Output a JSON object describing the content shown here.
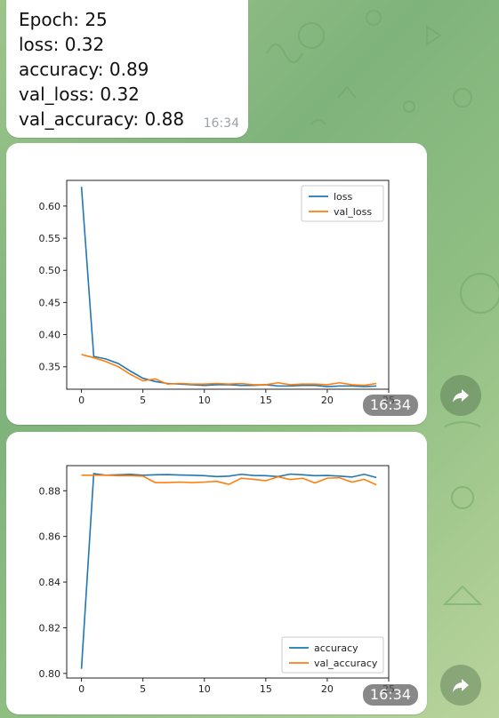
{
  "message": {
    "lines": [
      "Epoch: 25",
      "loss: 0.32",
      "accuracy: 0.89",
      "val_loss: 0.32",
      "val_accuracy: 0.88"
    ],
    "time": "16:34"
  },
  "chart_data": [
    {
      "type": "line",
      "title": "",
      "xlabel": "",
      "ylabel": "",
      "xlim": [
        -1.2,
        25
      ],
      "ylim": [
        0.315,
        0.64
      ],
      "x_ticks": [
        0,
        5,
        10,
        15,
        20,
        25
      ],
      "y_ticks": [
        0.35,
        0.4,
        0.45,
        0.5,
        0.55,
        0.6
      ],
      "y_tick_labels": [
        "0.35",
        "0.40",
        "0.45",
        "0.50",
        "0.55",
        "0.60"
      ],
      "legend_position": "top-right",
      "x": [
        0,
        1,
        2,
        3,
        4,
        5,
        6,
        7,
        8,
        9,
        10,
        11,
        12,
        13,
        14,
        15,
        16,
        17,
        18,
        19,
        20,
        21,
        22,
        23,
        24
      ],
      "series": [
        {
          "name": "loss",
          "color": "#1f77b4",
          "values": [
            0.63,
            0.366,
            0.362,
            0.355,
            0.343,
            0.332,
            0.327,
            0.324,
            0.323,
            0.322,
            0.321,
            0.322,
            0.322,
            0.321,
            0.321,
            0.322,
            0.32,
            0.32,
            0.321,
            0.321,
            0.319,
            0.32,
            0.32,
            0.319,
            0.32
          ]
        },
        {
          "name": "val_loss",
          "color": "#ff7f0e",
          "values": [
            0.369,
            0.364,
            0.358,
            0.35,
            0.338,
            0.328,
            0.331,
            0.323,
            0.324,
            0.323,
            0.323,
            0.324,
            0.323,
            0.324,
            0.322,
            0.322,
            0.325,
            0.322,
            0.323,
            0.323,
            0.322,
            0.325,
            0.322,
            0.321,
            0.324
          ]
        }
      ],
      "time": "16:34"
    },
    {
      "type": "line",
      "title": "",
      "xlabel": "",
      "ylabel": "",
      "xlim": [
        -1.2,
        25
      ],
      "ylim": [
        0.798,
        0.891
      ],
      "x_ticks": [
        0,
        5,
        10,
        15,
        20,
        25
      ],
      "y_ticks": [
        0.8,
        0.82,
        0.84,
        0.86,
        0.88
      ],
      "y_tick_labels": [
        "0.80",
        "0.82",
        "0.84",
        "0.86",
        "0.88"
      ],
      "legend_position": "bottom-right",
      "x": [
        0,
        1,
        2,
        3,
        4,
        5,
        6,
        7,
        8,
        9,
        10,
        11,
        12,
        13,
        14,
        15,
        16,
        17,
        18,
        19,
        20,
        21,
        22,
        23,
        24
      ],
      "series": [
        {
          "name": "accuracy",
          "color": "#1f77b4",
          "values": [
            0.802,
            0.8875,
            0.8868,
            0.887,
            0.8872,
            0.8868,
            0.887,
            0.8871,
            0.8869,
            0.8868,
            0.8866,
            0.8862,
            0.8864,
            0.8872,
            0.8867,
            0.8866,
            0.8862,
            0.8873,
            0.887,
            0.8866,
            0.8867,
            0.8864,
            0.886,
            0.8872,
            0.8858
          ]
        },
        {
          "name": "val_accuracy",
          "color": "#ff7f0e",
          "values": [
            0.8868,
            0.8868,
            0.8868,
            0.8866,
            0.8866,
            0.8864,
            0.8836,
            0.8836,
            0.8838,
            0.8836,
            0.8838,
            0.8841,
            0.8828,
            0.8855,
            0.885,
            0.8844,
            0.8861,
            0.8849,
            0.8855,
            0.8834,
            0.8855,
            0.8857,
            0.8838,
            0.885,
            0.8826
          ]
        }
      ],
      "time": "16:34"
    }
  ]
}
